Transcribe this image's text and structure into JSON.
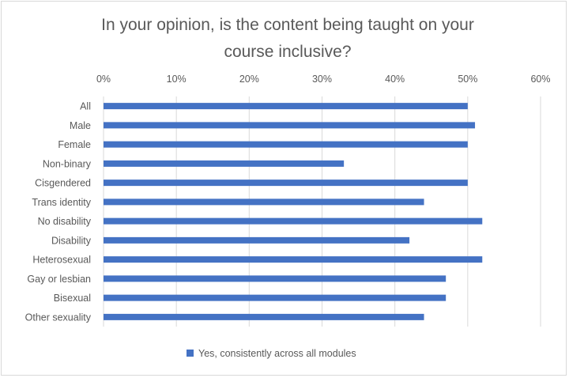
{
  "chart_data": {
    "type": "bar",
    "orientation": "horizontal",
    "title_lines": [
      "In your opinion, is the content being taught on your",
      "course inclusive?"
    ],
    "xlabel": "",
    "ylabel": "",
    "categories": [
      "All",
      "Male",
      "Female",
      "Non-binary",
      "Cisgendered",
      "Trans identity",
      "No disability",
      "Disability",
      "Heterosexual",
      "Gay or lesbian",
      "Bisexual",
      "Other sexuality"
    ],
    "series": [
      {
        "name": "Yes, consistently across all modules",
        "color": "#4472c4",
        "values": [
          50,
          51,
          50,
          33,
          50,
          44,
          52,
          42,
          52,
          47,
          47,
          44
        ]
      }
    ],
    "xlim": [
      0,
      60
    ],
    "xticks": [
      0,
      10,
      20,
      30,
      40,
      50,
      60
    ],
    "xtick_labels": [
      "0%",
      "10%",
      "20%",
      "30%",
      "40%",
      "50%",
      "60%"
    ],
    "value_unit": "percent",
    "grid": true,
    "legend_position": "bottom"
  }
}
